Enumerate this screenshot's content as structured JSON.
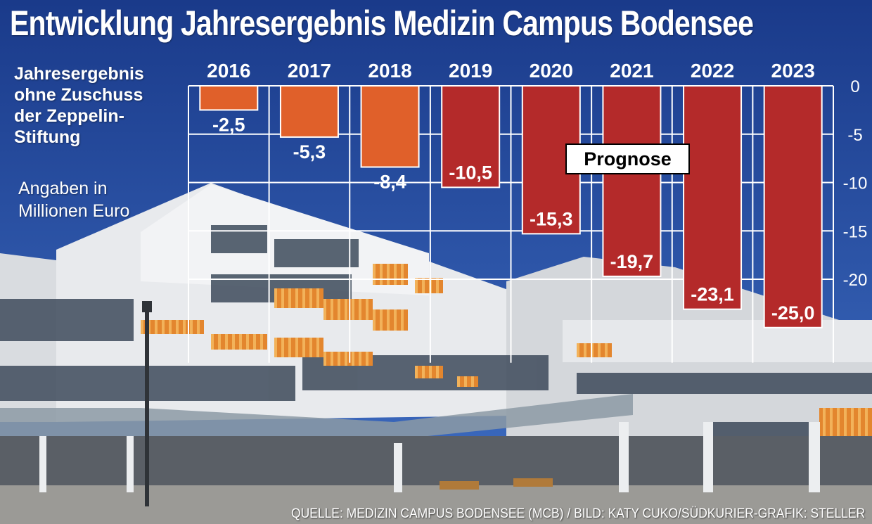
{
  "title": "Entwicklung Jahresergebnis Medizin Campus Bodensee",
  "subtitle": "Jahresergebnis\nohne Zuschuss\nder Zeppelin-\nStiftung",
  "units_note": "Angaben in\nMillionen Euro",
  "source": "QUELLE: MEDIZIN CAMPUS BODENSEE (MCB) / BILD: KATY CUKO/SÜDKURIER-GRAFIK: STELLER",
  "chart_data": {
    "type": "bar",
    "title": "Entwicklung Jahresergebnis Medizin Campus Bodensee",
    "ylabel": "",
    "categories": [
      "2016",
      "2017",
      "2018",
      "2019",
      "2020",
      "2021",
      "2022",
      "2023"
    ],
    "values": [
      -2.5,
      -5.3,
      -8.4,
      -10.5,
      -15.3,
      -19.7,
      -23.1,
      -25.0
    ],
    "value_labels": [
      "-2,5",
      "-5,3",
      "-8,4",
      "-10,5",
      "-15,3",
      "-19,7",
      "-23,1",
      "-25,0"
    ],
    "ylim": [
      -25,
      0
    ],
    "yticks": [
      0,
      -5,
      -10,
      -15,
      -20
    ],
    "ytick_labels": [
      "0",
      "-5",
      "-10",
      "-15",
      "-20"
    ],
    "grid": true,
    "actual_color": "#e0602a",
    "forecast_color": "#b42a2a",
    "forecast_from": "2019",
    "forecast_label": "Prognose"
  },
  "colors": {
    "sky": "#1d3f8f",
    "building": "#e9ebee",
    "awning": "#e3862e",
    "grid": "#ffffff"
  }
}
